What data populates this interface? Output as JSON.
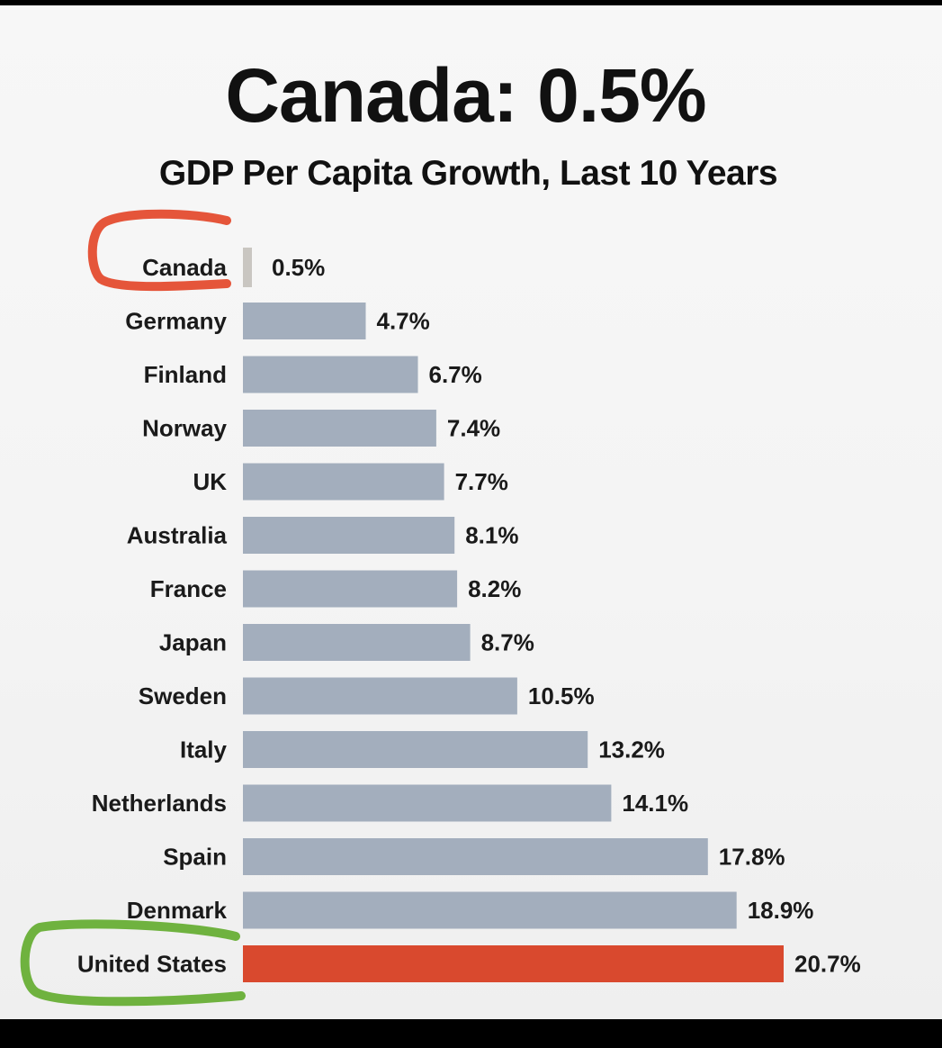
{
  "chart_data": {
    "type": "bar",
    "orientation": "horizontal",
    "title": "Canada: 0.5%",
    "subtitle": "GDP Per Capita Growth, Last 10 Years",
    "categories": [
      "Canada",
      "Germany",
      "Finland",
      "Norway",
      "UK",
      "Australia",
      "France",
      "Japan",
      "Sweden",
      "Italy",
      "Netherlands",
      "Spain",
      "Denmark",
      "United States"
    ],
    "values": [
      0.5,
      4.7,
      6.7,
      7.4,
      7.7,
      8.1,
      8.2,
      8.7,
      10.5,
      13.2,
      14.1,
      17.8,
      18.9,
      20.7
    ],
    "value_labels": [
      "0.5%",
      "4.7%",
      "6.7%",
      "7.4%",
      "7.7%",
      "8.1%",
      "8.2%",
      "8.7%",
      "10.5%",
      "13.2%",
      "14.1%",
      "17.8%",
      "18.9%",
      "20.7%"
    ],
    "xlim": [
      0,
      20.7
    ],
    "grid": false,
    "colors": {
      "default": "#a3aebd",
      "Canada": "#c9c6c1",
      "United States": "#d9492e"
    },
    "annotations": [
      {
        "type": "circle",
        "category": "Canada",
        "color": "#e5553a"
      },
      {
        "type": "circle",
        "category": "United States",
        "color": "#6fb23f"
      }
    ]
  }
}
